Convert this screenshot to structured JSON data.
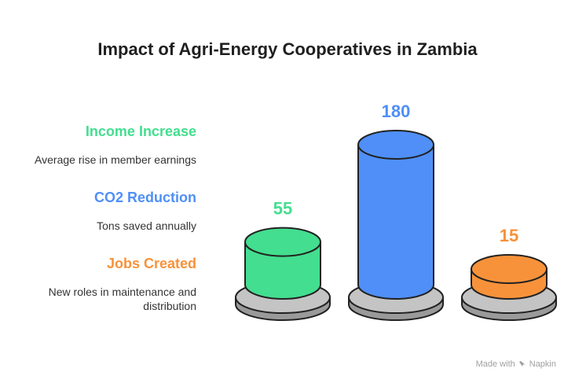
{
  "title": "Impact of Agri-Energy Cooperatives in Zambia",
  "legend": [
    {
      "label": "Income Increase",
      "description": "Average rise in member earnings",
      "color": "#43de8f"
    },
    {
      "label": "CO2 Reduction",
      "description": "Tons saved annually",
      "color": "#4f8ff7"
    },
    {
      "label": "Jobs Created",
      "description": "New roles in maintenance and distribution",
      "color": "#f7923a"
    }
  ],
  "chart_data": {
    "type": "bar",
    "style": "3d-cylinder",
    "categories": [
      "Income Increase",
      "CO2 Reduction",
      "Jobs Created"
    ],
    "values": [
      55,
      180,
      15
    ],
    "colors": [
      "#43de8f",
      "#4f8ff7",
      "#f7923a"
    ],
    "title": "Impact of Agri-Energy Cooperatives in Zambia"
  },
  "footer": {
    "text": "Made with",
    "brand": "Napkin"
  }
}
